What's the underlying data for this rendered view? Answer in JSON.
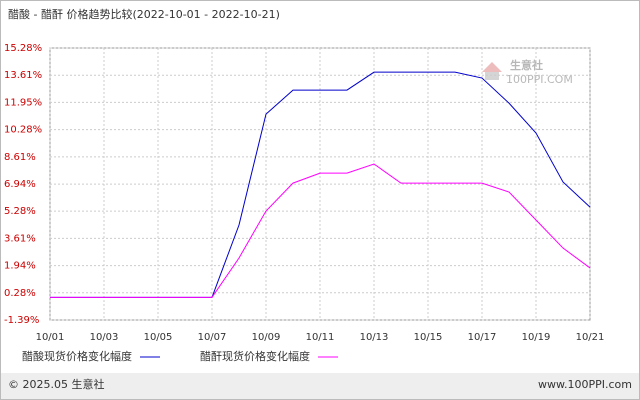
{
  "chart_data": {
    "type": "line",
    "title": "醋酸 - 醋酐 价格趋势比较(2022-10-01 - 2022-10-21)",
    "categories": [
      "10/01",
      null,
      "10/03",
      null,
      "10/05",
      null,
      "10/07",
      null,
      "10/09",
      null,
      "10/11",
      null,
      "10/13",
      null,
      "10/15",
      null,
      "10/17",
      null,
      "10/19",
      null,
      "10/21"
    ],
    "series": [
      {
        "name": "醋酸现货价格变化幅度",
        "color": "#0000cc",
        "values": [
          0,
          0,
          0,
          0,
          0,
          0,
          0,
          4.43,
          11.23,
          12.7,
          12.7,
          12.7,
          13.8,
          13.8,
          13.8,
          13.8,
          13.44,
          11.9,
          10.07,
          7.07,
          5.53
        ]
      },
      {
        "name": "醋酐现货价格变化幅度",
        "color": "#ff00ff",
        "values": [
          0,
          0,
          0,
          0,
          0,
          0,
          0,
          2.41,
          5.29,
          7.0,
          7.61,
          7.61,
          8.17,
          7.0,
          7.0,
          7.0,
          7.0,
          6.45,
          4.74,
          3.02,
          1.8
        ]
      }
    ],
    "ylim": [
      -1.39,
      15.28
    ],
    "yticks": [
      {
        "value": -1.39,
        "label": "-1.39%"
      },
      {
        "value": 0.28,
        "label": "0.28%"
      },
      {
        "value": 1.94,
        "label": "1.94%"
      },
      {
        "value": 3.61,
        "label": "3.61%"
      },
      {
        "value": 5.28,
        "label": "5.28%"
      },
      {
        "value": 6.94,
        "label": "6.94%"
      },
      {
        "value": 8.61,
        "label": "8.61%"
      },
      {
        "value": 10.28,
        "label": "10.28%"
      },
      {
        "value": 11.95,
        "label": "11.95%"
      },
      {
        "value": 13.61,
        "label": "13.61%"
      },
      {
        "value": 15.28,
        "label": "15.28%"
      }
    ],
    "grid": true,
    "watermark": {
      "name": "生意社",
      "site": "100PPI.COM"
    }
  },
  "footer": {
    "copyright": "© 2025.05 生意社",
    "site": "www.100PPI.com"
  }
}
